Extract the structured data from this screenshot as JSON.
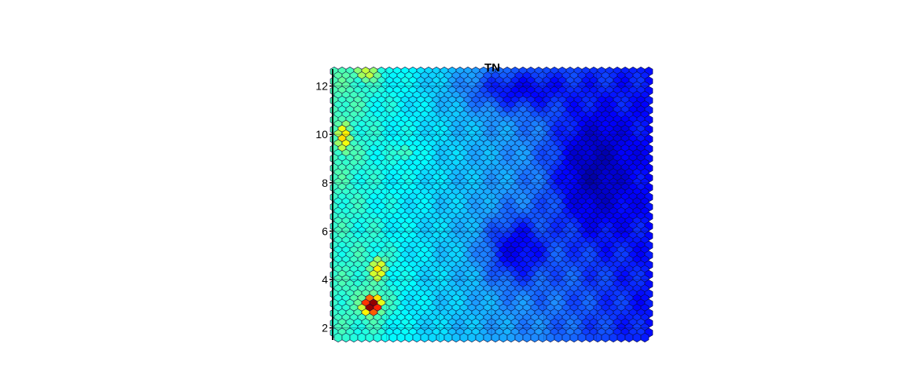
{
  "chart_data": {
    "type": "heatmap",
    "title": "TN",
    "xlabel": "",
    "ylabel": "",
    "y_ticks": [
      2,
      4,
      6,
      8,
      10,
      12
    ],
    "y_tick_labels": [
      "2",
      "4",
      "6",
      "8",
      "10",
      "12"
    ],
    "ylim": [
      1.5,
      12.7
    ],
    "cell_shape": "hexagon",
    "grid_columns": 40,
    "grid_rows": 56,
    "colormap": [
      "#00008f",
      "#0000ff",
      "#1e90ff",
      "#00ffff",
      "#7fff7f",
      "#ffff00",
      "#ff7f00",
      "#ff0000",
      "#8b0000"
    ],
    "value_range": [
      0,
      1
    ],
    "hotspots": [
      {
        "x": 0.12,
        "y": 2.9,
        "value": 1.0,
        "spread_x": 0.04,
        "spread_y": 0.55
      },
      {
        "x": 0.03,
        "y": 9.8,
        "value": 0.62,
        "spread_x": 0.04,
        "spread_y": 1.2
      },
      {
        "x": 0.1,
        "y": 12.5,
        "value": 0.55,
        "spread_x": 0.08,
        "spread_y": 0.7
      },
      {
        "x": 0.23,
        "y": 9.2,
        "value": 0.45,
        "spread_x": 0.06,
        "spread_y": 0.8
      },
      {
        "x": 0.14,
        "y": 4.4,
        "value": 0.6,
        "spread_x": 0.05,
        "spread_y": 1.0
      }
    ],
    "cold_zones": [
      {
        "x": 0.83,
        "y": 8.5,
        "value": 0.02,
        "spread_x": 0.12,
        "spread_y": 2.6
      },
      {
        "x": 0.58,
        "y": 5.2,
        "value": 0.08,
        "spread_x": 0.1,
        "spread_y": 1.4
      },
      {
        "x": 0.6,
        "y": 11.8,
        "value": 0.1,
        "spread_x": 0.18,
        "spread_y": 0.9
      }
    ]
  }
}
